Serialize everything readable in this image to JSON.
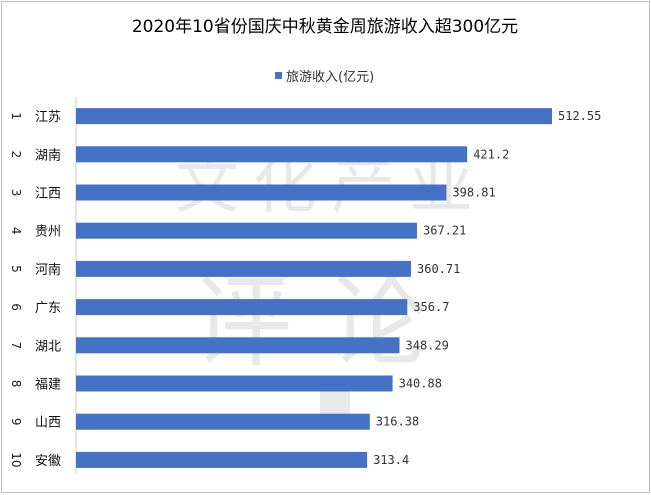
{
  "chart_data": {
    "type": "bar",
    "orientation": "horizontal",
    "title": "2020年10省份国庆中秋黄金周旅游收入超300亿元",
    "legend": {
      "position": "top",
      "entries": [
        "旅游收入(亿元)"
      ]
    },
    "ranks": [
      "1",
      "2",
      "3",
      "4",
      "5",
      "6",
      "7",
      "8",
      "9",
      "10"
    ],
    "categories": [
      "江苏",
      "湖南",
      "江西",
      "贵州",
      "河南",
      "广东",
      "湖北",
      "福建",
      "山西",
      "安徽"
    ],
    "series": [
      {
        "name": "旅游收入(亿元)",
        "color": "#4472c4",
        "values": [
          512.55,
          421.2,
          398.81,
          367.21,
          360.71,
          356.7,
          348.29,
          340.88,
          316.38,
          313.4
        ],
        "value_labels": [
          "512.55",
          "421.2",
          "398.81",
          "367.21",
          "360.71",
          "356.7",
          "348.29",
          "340.88",
          "316.38",
          "313.4"
        ]
      }
    ],
    "xlim": [
      0,
      560
    ],
    "grid": false,
    "watermark": {
      "row1": [
        "文",
        "化",
        "产",
        "业"
      ],
      "row2": [
        "评",
        "论"
      ]
    }
  }
}
